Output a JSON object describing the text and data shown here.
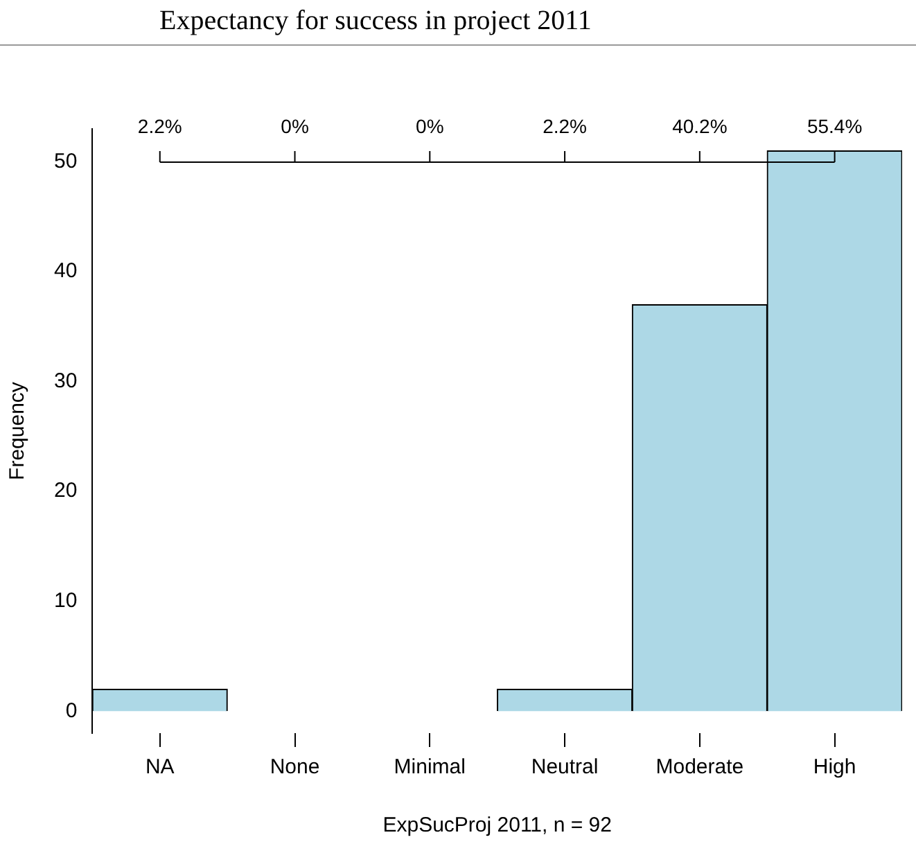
{
  "chart_data": {
    "type": "bar",
    "title": "Expectancy for success in project 2011",
    "xlabel": "ExpSucProj 2011, n = 92",
    "ylabel": "Frequency",
    "categories": [
      "NA",
      "None",
      "Minimal",
      "Neutral",
      "Moderate",
      "High"
    ],
    "values": [
      2,
      0,
      0,
      2,
      37,
      51
    ],
    "annotations": [
      {
        "text": "2.2%",
        "x": "NA"
      },
      {
        "text": "0%",
        "x": "None"
      },
      {
        "text": "0%",
        "x": "Minimal"
      },
      {
        "text": "2.2%",
        "x": "Neutral"
      },
      {
        "text": "40.2%",
        "x": "Moderate"
      },
      {
        "text": "55.4%",
        "x": "High"
      }
    ],
    "color": "#add8e6",
    "ylim": [
      -2,
      53
    ],
    "yticks": [
      0,
      10,
      20,
      30,
      40,
      50
    ]
  }
}
